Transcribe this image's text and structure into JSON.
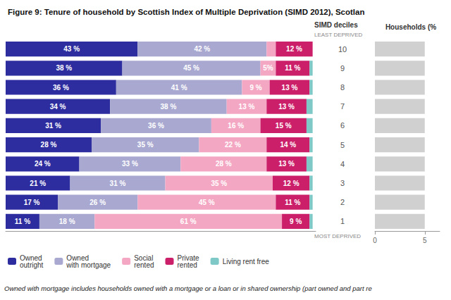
{
  "chart_data": [
    {
      "type": "bar",
      "title": "Figure 9: Tenure of household by Scottish Index of Multiple Deprivation (SIMD 2012), Scotlan",
      "orientation": "horizontal",
      "stacked": true,
      "categories": [
        "10",
        "9",
        "8",
        "7",
        "6",
        "5",
        "4",
        "3",
        "2",
        "1"
      ],
      "series": [
        {
          "name": "Owned\noutright",
          "color": "#2e2d9f",
          "values": [
            43,
            38,
            36,
            34,
            31,
            28,
            24,
            21,
            17,
            11
          ],
          "value_labels": [
            "43 %",
            "38 %",
            "36 %",
            "34 %",
            "31 %",
            "28 %",
            "24 %",
            "21 %",
            "17 %",
            "11 %"
          ],
          "data_labels": true
        },
        {
          "name": "Owned\nwith mortgage",
          "color": "#a8a8d0",
          "values": [
            42,
            45,
            41,
            38,
            36,
            35,
            33,
            31,
            26,
            18
          ],
          "value_labels": [
            "42 %",
            "45 %",
            "41 %",
            "38 %",
            "36 %",
            "35 %",
            "33 %",
            "31 %",
            "26 %",
            "18 %"
          ],
          "data_labels": true
        },
        {
          "name": "Social\nrented",
          "color": "#f4a7c3",
          "values": [
            3,
            5,
            9,
            13,
            16,
            22,
            28,
            35,
            45,
            61
          ],
          "value_labels": [
            null,
            "5%",
            "9 %",
            "13 %",
            "16 %",
            "22 %",
            "28 %",
            "35 %",
            "45 %",
            "61 %"
          ],
          "data_labels": true
        },
        {
          "name": "Private\nrented",
          "color": "#cc1f6a",
          "values": [
            12,
            11,
            13,
            13,
            15,
            14,
            13,
            12,
            11,
            9
          ],
          "value_labels": [
            "12 %",
            "11 %",
            "13 %",
            "13 %",
            "15 %",
            "14 %",
            "13 %",
            "12 %",
            "11 %",
            "9 %"
          ],
          "data_labels": true
        },
        {
          "name": "Living rent free",
          "color": "#7ec8c8",
          "values": [
            0,
            1,
            1,
            2,
            2,
            1,
            2,
            1,
            1,
            1
          ],
          "data_labels": false
        }
      ],
      "xlim": [
        0,
        101
      ],
      "grid": false,
      "legend": "bottom",
      "tick_labels": "y",
      "annotations": [
        "SIMD deciles",
        "LEAST DEPRIVED",
        "MOST DEPRIVED",
        "Owned with mortgage includes households owned with a mortgage or a loan or in shared ownership (part owned and part re"
      ]
    },
    {
      "type": "bar",
      "title": "Households (%",
      "orientation": "horizontal",
      "categories": [
        "10",
        "9",
        "8",
        "7",
        "6",
        "5",
        "4",
        "3",
        "2",
        "1"
      ],
      "values": [
        5,
        5,
        5,
        5,
        5,
        5,
        5,
        5,
        5,
        5
      ],
      "color": "#d0d0d0",
      "xlim": [
        0,
        6.5
      ],
      "xticks": [
        0,
        5
      ],
      "grid": false,
      "tick_labels": "x"
    }
  ]
}
